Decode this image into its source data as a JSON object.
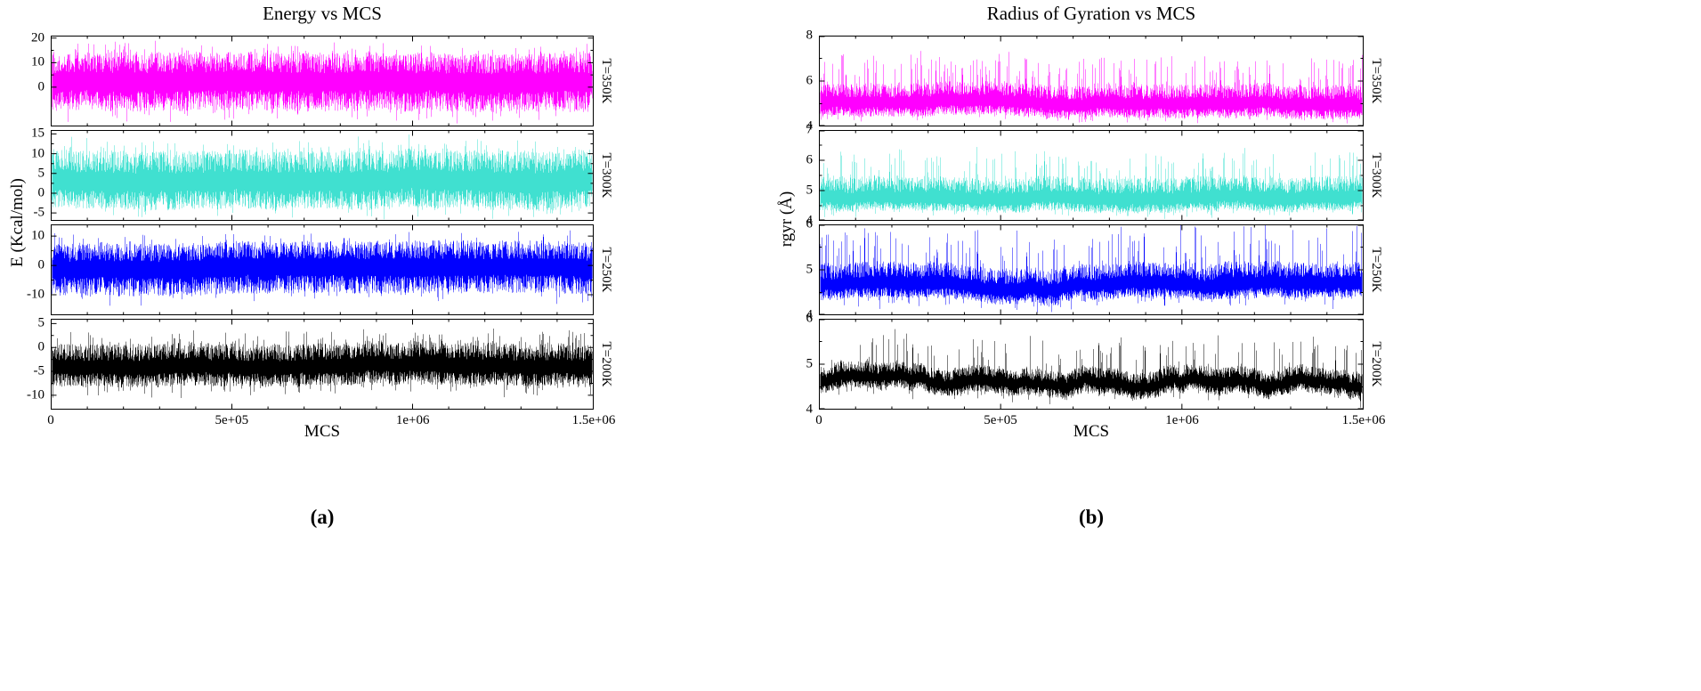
{
  "chart_data": [
    {
      "type": "line",
      "title": "Energy vs MCS",
      "xlabel": "MCS",
      "ylabel": "E (Kcal/mol)",
      "caption": "(a)",
      "grid": false,
      "legend_position": "right-rotated",
      "x_range": [
        0,
        1500000
      ],
      "x_ticks": [
        {
          "value": 0,
          "label": "0"
        },
        {
          "value": 500000,
          "label": "5e+05"
        },
        {
          "value": 1000000,
          "label": "1e+06"
        },
        {
          "value": 1500000,
          "label": "1.5e+06"
        }
      ],
      "subplots": [
        {
          "series_label": "T=350K",
          "color": "#ff00ff",
          "ylim": [
            -16,
            21
          ],
          "yticks": [
            0,
            10,
            20
          ],
          "mean": 2.0,
          "typical_range": [
            -10,
            14
          ],
          "peak_range": [
            -15,
            19
          ],
          "spike_p": 0.14,
          "drift": 0.6,
          "seed": 101
        },
        {
          "series_label": "T=300K",
          "color": "#40e0d0",
          "ylim": [
            -7,
            16
          ],
          "yticks": [
            -5,
            0,
            5,
            10,
            15
          ],
          "mean": 3.0,
          "typical_range": [
            -4,
            11
          ],
          "peak_range": [
            -6.5,
            15
          ],
          "spike_p": 0.14,
          "drift": 0.5,
          "seed": 102
        },
        {
          "series_label": "T=250K",
          "color": "#0000ff",
          "ylim": [
            -17,
            14
          ],
          "yticks": [
            -10,
            0,
            10
          ],
          "mean": -1.0,
          "typical_range": [
            -10,
            8
          ],
          "peak_range": [
            -14,
            12
          ],
          "spike_p": 0.13,
          "drift": 0.6,
          "seed": 103
        },
        {
          "series_label": "T=200K",
          "color": "#000000",
          "ylim": [
            -13,
            6
          ],
          "yticks": [
            -10,
            -5,
            0,
            5
          ],
          "mean": -4.0,
          "typical_range": [
            -8,
            1
          ],
          "peak_range": [
            -11,
            4.5
          ],
          "spike_p": 0.13,
          "drift": 0.5,
          "seed": 104
        }
      ]
    },
    {
      "type": "line",
      "title": "Radius of Gyration vs MCS",
      "xlabel": "MCS",
      "ylabel": "rgyr (Å)",
      "caption": "(b)",
      "grid": false,
      "legend_position": "right-rotated",
      "x_range": [
        0,
        1500000
      ],
      "x_ticks": [
        {
          "value": 0,
          "label": "0"
        },
        {
          "value": 500000,
          "label": "5e+05"
        },
        {
          "value": 1000000,
          "label": "1e+06"
        },
        {
          "value": 1500000,
          "label": "1.5e+06"
        }
      ],
      "subplots": [
        {
          "series_label": "T=350K",
          "color": "#ff00ff",
          "ylim": [
            4,
            8
          ],
          "yticks": [
            4,
            6,
            8
          ],
          "mean": 5.0,
          "typical_range": [
            4.4,
            5.9
          ],
          "peak_range": [
            4.15,
            7.4
          ],
          "spike_p": 0.15,
          "drift": 0.12,
          "seed": 201
        },
        {
          "series_label": "T=300K",
          "color": "#40e0d0",
          "ylim": [
            4,
            7
          ],
          "yticks": [
            4,
            5,
            6,
            7
          ],
          "mean": 4.75,
          "typical_range": [
            4.35,
            5.5
          ],
          "peak_range": [
            4.1,
            6.6
          ],
          "spike_p": 0.13,
          "drift": 0.1,
          "seed": 202
        },
        {
          "series_label": "T=250K",
          "color": "#0000ff",
          "ylim": [
            4,
            6
          ],
          "yticks": [
            4,
            5,
            6
          ],
          "mean": 4.6,
          "typical_range": [
            4.3,
            5.1
          ],
          "peak_range": [
            4.05,
            6.0
          ],
          "spike_p": 0.11,
          "drift": 0.1,
          "seed": 203
        },
        {
          "series_label": "T=200K",
          "color": "#000000",
          "ylim": [
            4,
            6
          ],
          "yticks": [
            4,
            5,
            6
          ],
          "mean": 4.6,
          "typical_range": [
            4.35,
            4.95
          ],
          "peak_range": [
            4.15,
            5.7
          ],
          "spike_p": 0.09,
          "drift": 0.14,
          "seed": 204
        }
      ]
    }
  ]
}
